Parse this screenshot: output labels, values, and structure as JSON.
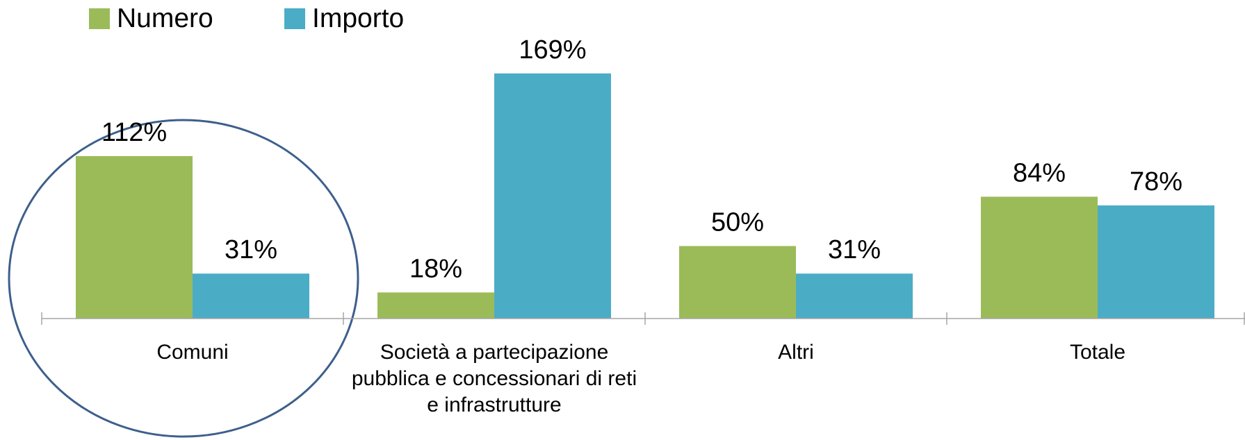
{
  "chart_data": {
    "type": "bar",
    "categories": [
      "Comuni",
      "Società a partecipazione pubblica e concessionari di reti e infrastrutture",
      "Altri",
      "Totale"
    ],
    "series": [
      {
        "name": "Numero",
        "color": "#9bbb59",
        "values": [
          112,
          18,
          50,
          84
        ],
        "value_labels": [
          "112%",
          "18%",
          "50%",
          "84%"
        ]
      },
      {
        "name": "Importo",
        "color": "#4bacc6",
        "values": [
          31,
          169,
          31,
          78
        ],
        "value_labels": [
          "31%",
          "169%",
          "31%",
          "78%"
        ]
      }
    ],
    "legend": "top-left"
  }
}
